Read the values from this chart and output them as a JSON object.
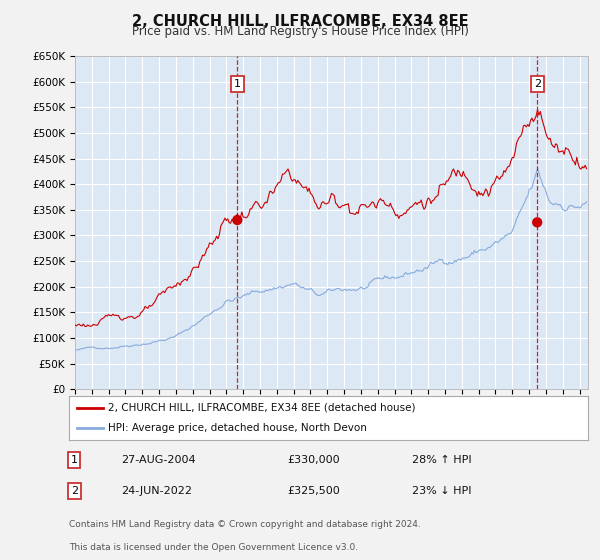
{
  "title": "2, CHURCH HILL, ILFRACOMBE, EX34 8EE",
  "subtitle": "Price paid vs. HM Land Registry's House Price Index (HPI)",
  "bg_color": "#dce9f5",
  "outer_bg": "#f2f2f2",
  "grid_color": "#ffffff",
  "red_line_color": "#cc0000",
  "blue_line_color": "#88aadd",
  "ylim": [
    0,
    650000
  ],
  "yticks": [
    0,
    50000,
    100000,
    150000,
    200000,
    250000,
    300000,
    350000,
    400000,
    450000,
    500000,
    550000,
    600000,
    650000
  ],
  "xlim_start": 1995.0,
  "xlim_end": 2025.5,
  "sale1_x": 2004.65,
  "sale1_y": 330000,
  "sale1_label": "1",
  "sale1_date": "27-AUG-2004",
  "sale1_price": "£330,000",
  "sale1_hpi": "28% ↑ HPI",
  "sale2_x": 2022.48,
  "sale2_y": 325500,
  "sale2_label": "2",
  "sale2_date": "24-JUN-2022",
  "sale2_price": "£325,500",
  "sale2_hpi": "23% ↓ HPI",
  "legend1": "2, CHURCH HILL, ILFRACOMBE, EX34 8EE (detached house)",
  "legend2": "HPI: Average price, detached house, North Devon",
  "footer1": "Contains HM Land Registry data © Crown copyright and database right 2024.",
  "footer2": "This data is licensed under the Open Government Licence v3.0.",
  "start_year": 1995,
  "end_year": 2025
}
